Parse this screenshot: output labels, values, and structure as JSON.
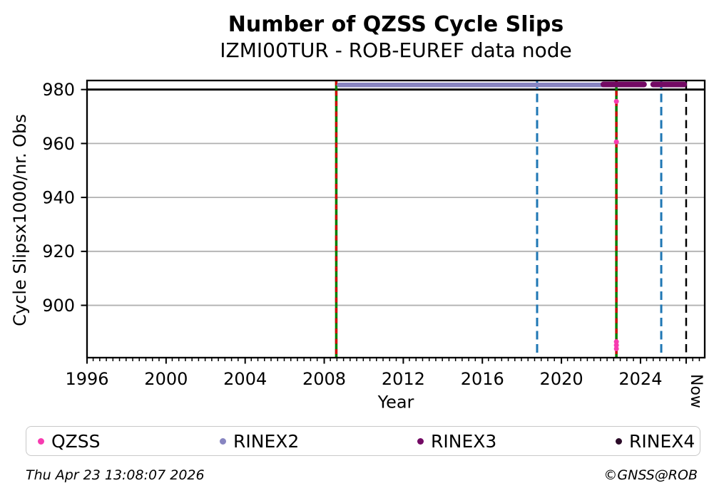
{
  "title": "Number of QZSS Cycle Slips",
  "subtitle": "IZMI00TUR - ROB-EUREF data node",
  "footer": {
    "timestamp": "Thu Apr 23 13:08:07 2026",
    "credit": "©GNSS@ROB"
  },
  "legend": {
    "items": [
      {
        "label": "QZSS",
        "color": "#f73bb0"
      },
      {
        "label": "RINEX2",
        "color": "#8785c1"
      },
      {
        "label": "RINEX3",
        "color": "#730a64"
      },
      {
        "label": "RINEX4",
        "color": "#2b0b28"
      }
    ]
  },
  "chart_data": {
    "type": "scatter",
    "title": "Number of QZSS Cycle Slips",
    "subtitle": "IZMI00TUR - ROB-EUREF data node",
    "xlabel": "Year",
    "ylabel": "Cycle Slipsx1000/nr. Obs",
    "xlim": [
      1996,
      2027.25
    ],
    "ylim": [
      880.6,
      983.35
    ],
    "x_major_ticks": [
      1996,
      2000,
      2004,
      2008,
      2012,
      2016,
      2020,
      2024
    ],
    "now_tick": {
      "x": 2026.31,
      "label": "Now"
    },
    "minor_step_years": 0.33333,
    "y_ticks": [
      900,
      920,
      940,
      960,
      980
    ],
    "grid": "horizontal-gray",
    "hline": {
      "y": 980,
      "color": "#000000"
    },
    "vlines": [
      {
        "x": 2008.61,
        "type": "green-red-dashed",
        "color1": "#008000",
        "color2": "#d40000"
      },
      {
        "x": 2018.77,
        "type": "blue-dashed",
        "color1": "#1f77b4"
      },
      {
        "x": 2022.78,
        "type": "green-red-dashed",
        "color1": "#008000",
        "color2": "#d40000"
      },
      {
        "x": 2025.05,
        "type": "blue-dashed",
        "color1": "#1f77b4"
      },
      {
        "x": 2026.31,
        "type": "black-dashed",
        "color1": "#000000"
      }
    ],
    "series": [
      {
        "name": "QZSS",
        "color": "#f73bb0",
        "marker_px": 7,
        "points": [
          [
            2022.78,
            975.6
          ],
          [
            2022.78,
            960.6
          ],
          [
            2022.78,
            886.5
          ],
          [
            2022.78,
            885.2
          ],
          [
            2022.78,
            883.9
          ]
        ]
      },
      {
        "name": "RINEX2",
        "color": "#8785c1",
        "marker_px": 6.5,
        "runs": [
          [
            2008.63,
            2022.25,
            981.7
          ]
        ]
      },
      {
        "name": "RINEX3",
        "color": "#730a64",
        "marker_px": 8,
        "runs": [
          [
            2021.98,
            2024.32,
            981.9
          ],
          [
            2024.5,
            2026.35,
            981.9
          ]
        ]
      },
      {
        "name": "RINEX4",
        "color": "#2b0b28",
        "marker_px": 7,
        "points": []
      }
    ]
  }
}
